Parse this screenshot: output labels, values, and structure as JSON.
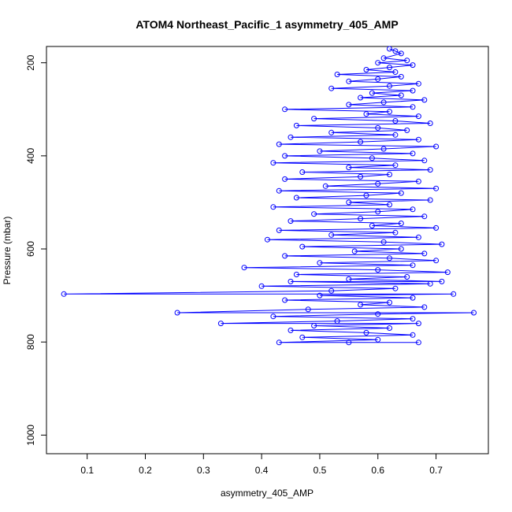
{
  "chart_data": {
    "type": "scatter",
    "title": "ATOM4 Northeast_Pacific_1 asymmetry_405_AMP",
    "xlabel": "asymmetry_405_AMP",
    "ylabel": "Pressure (mbar)",
    "xlim": [
      0.03,
      0.79
    ],
    "ylim": [
      1040,
      165
    ],
    "y_reversed": true,
    "xticks": [
      0.1,
      0.2,
      0.3,
      0.4,
      0.5,
      0.6,
      0.7
    ],
    "xtick_labels": [
      "0.1",
      "0.2",
      "0.3",
      "0.4",
      "0.5",
      "0.6",
      "0.7"
    ],
    "yticks": [
      200,
      400,
      600,
      800,
      1000
    ],
    "ytick_labels": [
      "200",
      "400",
      "600",
      "800",
      "1000"
    ],
    "grid": false,
    "legend": "none",
    "marker": "open-circle",
    "connected": true,
    "series": [
      {
        "color": "#0000ff",
        "points": [
          [
            0.62,
            170
          ],
          [
            0.63,
            175
          ],
          [
            0.64,
            180
          ],
          [
            0.61,
            190
          ],
          [
            0.65,
            195
          ],
          [
            0.6,
            200
          ],
          [
            0.66,
            205
          ],
          [
            0.62,
            210
          ],
          [
            0.58,
            215
          ],
          [
            0.63,
            220
          ],
          [
            0.53,
            225
          ],
          [
            0.64,
            230
          ],
          [
            0.6,
            235
          ],
          [
            0.55,
            240
          ],
          [
            0.67,
            245
          ],
          [
            0.62,
            250
          ],
          [
            0.52,
            255
          ],
          [
            0.66,
            260
          ],
          [
            0.59,
            265
          ],
          [
            0.64,
            270
          ],
          [
            0.57,
            275
          ],
          [
            0.68,
            280
          ],
          [
            0.61,
            285
          ],
          [
            0.55,
            290
          ],
          [
            0.66,
            295
          ],
          [
            0.44,
            300
          ],
          [
            0.62,
            305
          ],
          [
            0.58,
            310
          ],
          [
            0.67,
            315
          ],
          [
            0.49,
            320
          ],
          [
            0.63,
            325
          ],
          [
            0.69,
            330
          ],
          [
            0.46,
            335
          ],
          [
            0.6,
            340
          ],
          [
            0.65,
            345
          ],
          [
            0.52,
            350
          ],
          [
            0.63,
            355
          ],
          [
            0.45,
            360
          ],
          [
            0.67,
            365
          ],
          [
            0.57,
            370
          ],
          [
            0.43,
            375
          ],
          [
            0.7,
            380
          ],
          [
            0.61,
            385
          ],
          [
            0.5,
            390
          ],
          [
            0.66,
            395
          ],
          [
            0.44,
            400
          ],
          [
            0.59,
            405
          ],
          [
            0.68,
            410
          ],
          [
            0.42,
            415
          ],
          [
            0.63,
            420
          ],
          [
            0.55,
            425
          ],
          [
            0.69,
            430
          ],
          [
            0.47,
            435
          ],
          [
            0.62,
            440
          ],
          [
            0.57,
            445
          ],
          [
            0.44,
            450
          ],
          [
            0.67,
            455
          ],
          [
            0.6,
            460
          ],
          [
            0.51,
            465
          ],
          [
            0.7,
            470
          ],
          [
            0.43,
            475
          ],
          [
            0.64,
            480
          ],
          [
            0.58,
            485
          ],
          [
            0.46,
            490
          ],
          [
            0.69,
            495
          ],
          [
            0.55,
            500
          ],
          [
            0.62,
            505
          ],
          [
            0.42,
            510
          ],
          [
            0.66,
            515
          ],
          [
            0.6,
            520
          ],
          [
            0.49,
            525
          ],
          [
            0.68,
            530
          ],
          [
            0.57,
            535
          ],
          [
            0.45,
            540
          ],
          [
            0.64,
            545
          ],
          [
            0.59,
            550
          ],
          [
            0.7,
            555
          ],
          [
            0.43,
            560
          ],
          [
            0.63,
            565
          ],
          [
            0.52,
            570
          ],
          [
            0.67,
            575
          ],
          [
            0.41,
            580
          ],
          [
            0.61,
            585
          ],
          [
            0.71,
            590
          ],
          [
            0.47,
            595
          ],
          [
            0.64,
            600
          ],
          [
            0.56,
            605
          ],
          [
            0.68,
            610
          ],
          [
            0.44,
            615
          ],
          [
            0.62,
            620
          ],
          [
            0.7,
            625
          ],
          [
            0.5,
            630
          ],
          [
            0.66,
            635
          ],
          [
            0.37,
            640
          ],
          [
            0.6,
            645
          ],
          [
            0.72,
            650
          ],
          [
            0.46,
            655
          ],
          [
            0.65,
            660
          ],
          [
            0.55,
            665
          ],
          [
            0.71,
            670
          ],
          [
            0.45,
            670
          ],
          [
            0.69,
            675
          ],
          [
            0.4,
            680
          ],
          [
            0.63,
            685
          ],
          [
            0.52,
            690
          ],
          [
            0.06,
            697
          ],
          [
            0.73,
            697
          ],
          [
            0.5,
            700
          ],
          [
            0.66,
            705
          ],
          [
            0.44,
            710
          ],
          [
            0.62,
            715
          ],
          [
            0.57,
            720
          ],
          [
            0.68,
            725
          ],
          [
            0.48,
            730
          ],
          [
            0.255,
            737
          ],
          [
            0.765,
            737
          ],
          [
            0.6,
            740
          ],
          [
            0.42,
            745
          ],
          [
            0.66,
            750
          ],
          [
            0.53,
            755
          ],
          [
            0.33,
            760
          ],
          [
            0.67,
            760
          ],
          [
            0.49,
            765
          ],
          [
            0.62,
            770
          ],
          [
            0.45,
            775
          ],
          [
            0.58,
            780
          ],
          [
            0.66,
            785
          ],
          [
            0.47,
            790
          ],
          [
            0.6,
            795
          ],
          [
            0.43,
            801
          ],
          [
            0.67,
            801
          ],
          [
            0.55,
            801
          ]
        ]
      }
    ]
  }
}
